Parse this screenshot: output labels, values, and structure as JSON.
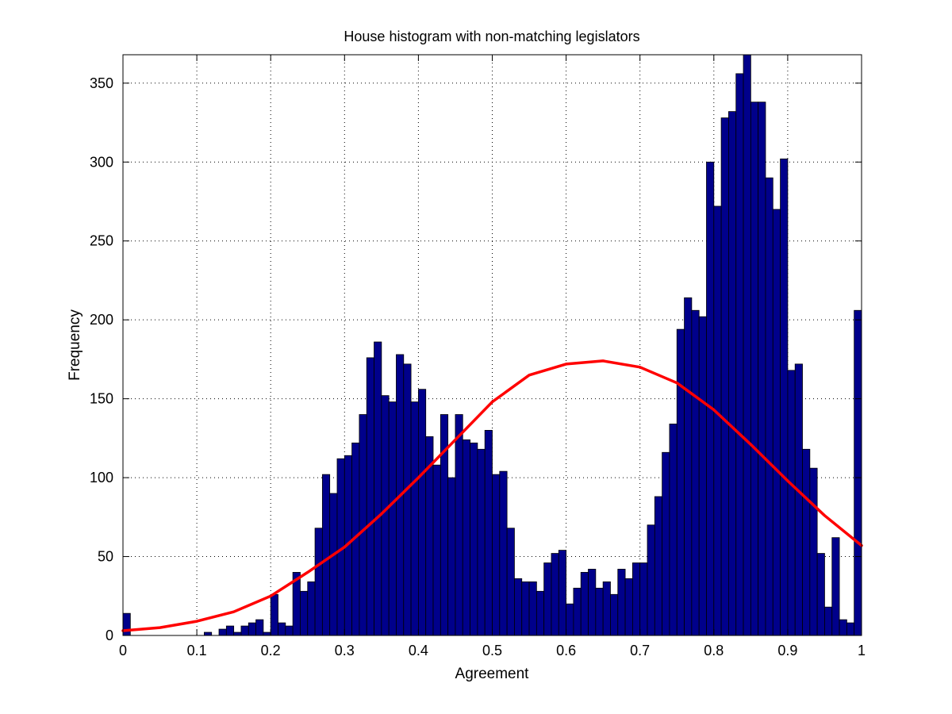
{
  "chart_data": {
    "type": "bar",
    "title": "House  histogram with non-matching legislators",
    "xlabel": "Agreement",
    "ylabel": "Frequency",
    "xlim": [
      0,
      1
    ],
    "ylim": [
      0,
      368
    ],
    "grid": true,
    "bar_color": "#00008b",
    "bar_edge_color": "#000000",
    "curve_color": "#ff0000",
    "xticks": [
      "0",
      "0.1",
      "0.2",
      "0.3",
      "0.4",
      "0.5",
      "0.6",
      "0.7",
      "0.8",
      "0.9",
      "1"
    ],
    "yticks": [
      "0",
      "50",
      "100",
      "150",
      "200",
      "250",
      "300",
      "350"
    ],
    "bin_width": 0.01,
    "bin_starts": [
      0.0,
      0.01,
      0.02,
      0.03,
      0.04,
      0.05,
      0.06,
      0.07,
      0.08,
      0.09,
      0.1,
      0.11,
      0.12,
      0.13,
      0.14,
      0.15,
      0.16,
      0.17,
      0.18,
      0.19,
      0.2,
      0.21,
      0.22,
      0.23,
      0.24,
      0.25,
      0.26,
      0.27,
      0.28,
      0.29,
      0.3,
      0.31,
      0.32,
      0.33,
      0.34,
      0.35,
      0.36,
      0.37,
      0.38,
      0.39,
      0.4,
      0.41,
      0.42,
      0.43,
      0.44,
      0.45,
      0.46,
      0.47,
      0.48,
      0.49,
      0.5,
      0.51,
      0.52,
      0.53,
      0.54,
      0.55,
      0.56,
      0.57,
      0.58,
      0.59,
      0.6,
      0.61,
      0.62,
      0.63,
      0.64,
      0.65,
      0.66,
      0.67,
      0.68,
      0.69,
      0.7,
      0.71,
      0.72,
      0.73,
      0.74,
      0.75,
      0.76,
      0.77,
      0.78,
      0.79,
      0.8,
      0.81,
      0.82,
      0.83,
      0.84,
      0.85,
      0.86,
      0.87,
      0.88,
      0.89,
      0.9,
      0.91,
      0.92,
      0.93,
      0.94,
      0.95,
      0.96,
      0.97,
      0.98,
      0.99
    ],
    "values": [
      14,
      0,
      0,
      0,
      0,
      0,
      0,
      0,
      0,
      0,
      0,
      2,
      0,
      4,
      6,
      2,
      6,
      8,
      10,
      2,
      26,
      8,
      6,
      40,
      28,
      34,
      68,
      102,
      90,
      112,
      114,
      122,
      140,
      176,
      186,
      152,
      148,
      178,
      172,
      148,
      156,
      126,
      108,
      140,
      100,
      140,
      124,
      122,
      118,
      130,
      102,
      104,
      68,
      36,
      34,
      34,
      28,
      46,
      52,
      54,
      20,
      30,
      40,
      42,
      30,
      34,
      26,
      42,
      36,
      46,
      46,
      70,
      88,
      116,
      134,
      194,
      214,
      206,
      202,
      300,
      272,
      328,
      332,
      356,
      368,
      338,
      338,
      290,
      270,
      302,
      168,
      172,
      118,
      106,
      52,
      18,
      62,
      10,
      8,
      206
    ],
    "curve": {
      "x": [
        0,
        0.05,
        0.1,
        0.15,
        0.2,
        0.25,
        0.3,
        0.35,
        0.4,
        0.45,
        0.5,
        0.55,
        0.6,
        0.65,
        0.7,
        0.75,
        0.8,
        0.85,
        0.9,
        0.95,
        1.0
      ],
      "y": [
        3,
        5,
        9,
        15,
        25,
        40,
        56,
        77,
        100,
        124,
        148,
        165,
        172,
        174,
        170,
        160,
        143,
        121,
        98,
        76,
        57
      ]
    }
  }
}
